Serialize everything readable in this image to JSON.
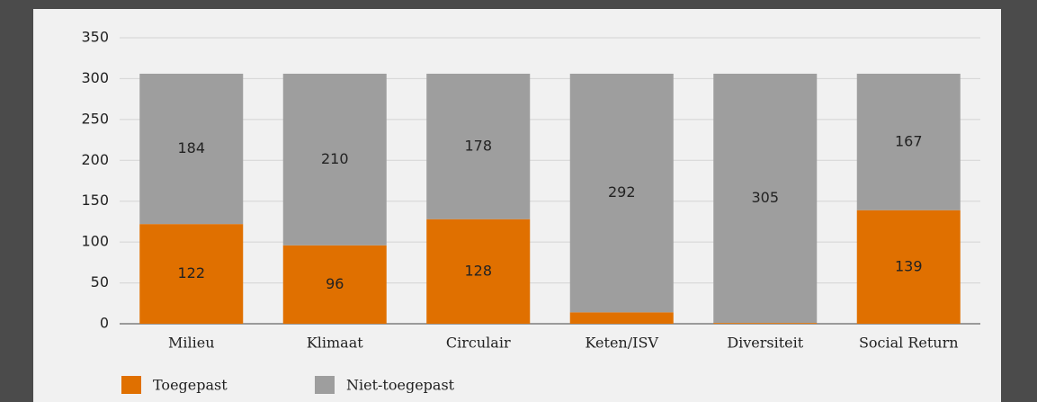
{
  "chart_data": {
    "type": "bar",
    "stacked": true,
    "categories": [
      "Milieu",
      "Klimaat",
      "Circulair",
      "Keten/ISV",
      "Diversiteit",
      "Social Return"
    ],
    "series": [
      {
        "name": "Toegepast",
        "color": "#e07000",
        "values": [
          122,
          96,
          128,
          14,
          1,
          139
        ]
      },
      {
        "name": "Niet-toegepast",
        "color": "#9e9e9e",
        "values": [
          184,
          210,
          178,
          292,
          305,
          167
        ]
      }
    ],
    "ylim": [
      0,
      350
    ],
    "yticks": [
      0,
      50,
      100,
      150,
      200,
      250,
      300,
      350
    ],
    "grid": true,
    "legend": "bottom-left"
  }
}
